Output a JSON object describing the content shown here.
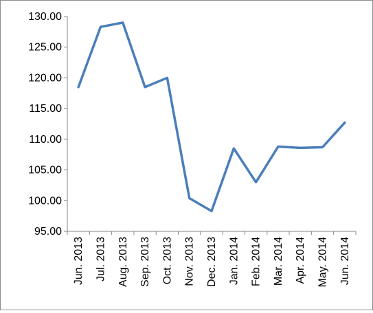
{
  "chart_data": {
    "type": "line",
    "title": "",
    "xlabel": "",
    "ylabel": "",
    "ylim": [
      95,
      130
    ],
    "y_ticks": [
      "95.00",
      "100.00",
      "105.00",
      "110.00",
      "115.00",
      "120.00",
      "125.00",
      "130.00"
    ],
    "categories": [
      "Jun. 2013",
      "Jul. 2013",
      "Aug. 2013",
      "Sep. 2013",
      "Oct. 2013",
      "Nov. 2013",
      "Dec. 2013",
      "Jan. 2014",
      "Feb. 2014",
      "Mar. 2014",
      "Apr. 2014",
      "May. 2014",
      "Jun. 2014"
    ],
    "series": [
      {
        "values": [
          118.5,
          128.3,
          129.0,
          118.5,
          120.0,
          100.4,
          98.3,
          108.5,
          103.0,
          108.8,
          108.6,
          108.7,
          112.7
        ],
        "color": "#4a7ebb"
      }
    ],
    "grid": false,
    "legend": "none",
    "colors": {
      "axis": "#868686",
      "line": "#4a7ebb"
    }
  }
}
